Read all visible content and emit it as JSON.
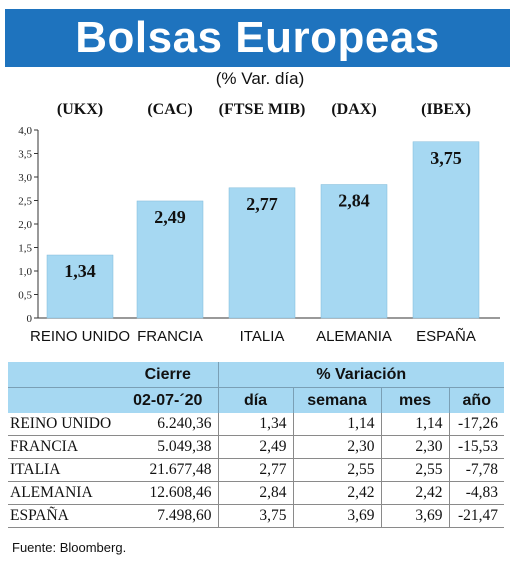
{
  "title": "Bolsas Europeas",
  "subtitle": "(% Var. día)",
  "chart_data": {
    "type": "bar",
    "categories": [
      "REINO UNIDO",
      "FRANCIA",
      "ITALIA",
      "ALEMANIA",
      "ESPAÑA"
    ],
    "indices": [
      "(UKX)",
      "(CAC)",
      "(FTSE MIB)",
      "(DAX)",
      "(IBEX)"
    ],
    "values": [
      1.34,
      2.49,
      2.77,
      2.84,
      3.75
    ],
    "value_labels": [
      "1,34",
      "2,49",
      "2,77",
      "2,84",
      "3,75"
    ],
    "ylim": [
      0,
      4
    ],
    "yticks": [
      "0",
      "0,5",
      "1,0",
      "1,5",
      "2,0",
      "2,5",
      "3,0",
      "3,5",
      "4,0"
    ],
    "bar_color": "#a6d8f2",
    "grid": false
  },
  "table": {
    "headers_top": [
      "Cierre",
      "% Variación"
    ],
    "headers": [
      "02-07-´20",
      "día",
      "semana",
      "mes",
      "año"
    ],
    "rows": [
      {
        "name": "REINO UNIDO",
        "cierre": "6.240,36",
        "dia": "1,34",
        "semana": "1,14",
        "mes": "1,14",
        "ano": "-17,26"
      },
      {
        "name": "FRANCIA",
        "cierre": "5.049,38",
        "dia": "2,49",
        "semana": "2,30",
        "mes": "2,30",
        "ano": "-15,53"
      },
      {
        "name": "ITALIA",
        "cierre": "21.677,48",
        "dia": "2,77",
        "semana": "2,55",
        "mes": "2,55",
        "ano": "-7,78"
      },
      {
        "name": "ALEMANIA",
        "cierre": "12.608,46",
        "dia": "2,84",
        "semana": "2,42",
        "mes": "2,42",
        "ano": "-4,83"
      },
      {
        "name": "ESPAÑA",
        "cierre": "7.498,60",
        "dia": "3,75",
        "semana": "3,69",
        "mes": "3,69",
        "ano": "-21,47"
      }
    ]
  },
  "source": "Fuente: Bloomberg.",
  "colors": {
    "title_bg": "#1e73be",
    "header_bg": "#a6d8f2"
  }
}
